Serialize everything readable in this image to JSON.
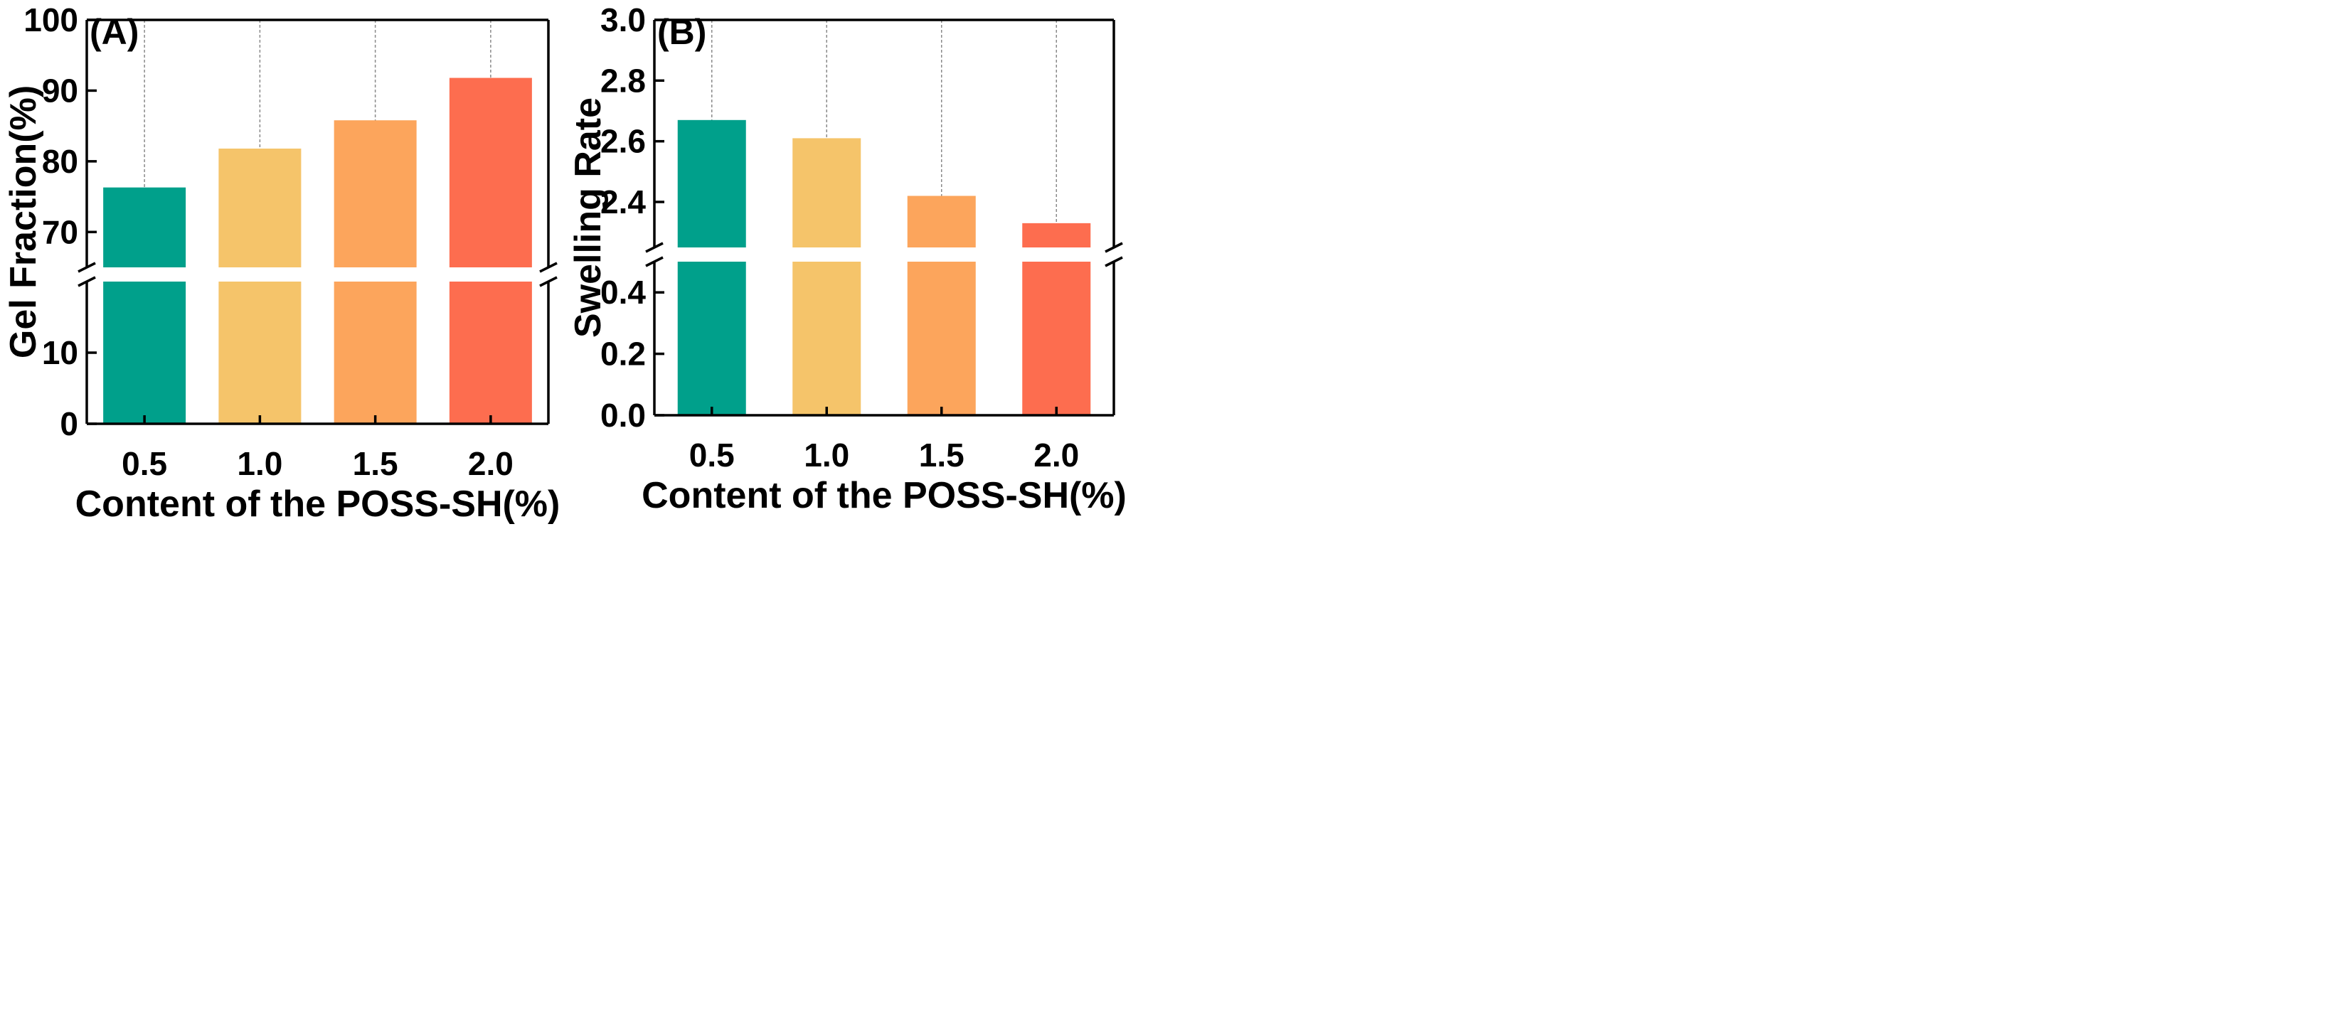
{
  "colors": [
    "#00a08b",
    "#f5c46a",
    "#fca55c",
    "#fd6d4f"
  ],
  "chart_data": [
    {
      "type": "bar",
      "panel_label": "(A)",
      "categories": [
        "0.5",
        "1.0",
        "1.5",
        "2.0"
      ],
      "values": [
        76.3,
        81.8,
        85.8,
        91.8
      ],
      "xlabel": "Content of the POSS-SH(%)",
      "ylabel": "Gel Fraction(%)",
      "axis_break": true,
      "lower_range": [
        0,
        20
      ],
      "upper_range": [
        65,
        100
      ],
      "lower_ticks": [
        0,
        10
      ],
      "upper_ticks": [
        70,
        80,
        90,
        100
      ],
      "tick_format_decimals": 0,
      "grid": "vertical dashed"
    },
    {
      "type": "bar",
      "panel_label": "(B)",
      "categories": [
        "0.5",
        "1.0",
        "1.5",
        "2.0"
      ],
      "values": [
        2.67,
        2.61,
        2.42,
        2.33
      ],
      "xlabel": "Content of the POSS-SH(%)",
      "ylabel": "Swelling Rate",
      "axis_break": true,
      "lower_range": [
        0,
        0.5
      ],
      "upper_range": [
        2.25,
        3.0
      ],
      "lower_ticks": [
        0.0,
        0.2,
        0.4
      ],
      "upper_ticks": [
        2.4,
        2.6,
        2.8,
        3.0
      ],
      "tick_format_decimals": 1,
      "grid": "vertical dashed"
    }
  ]
}
